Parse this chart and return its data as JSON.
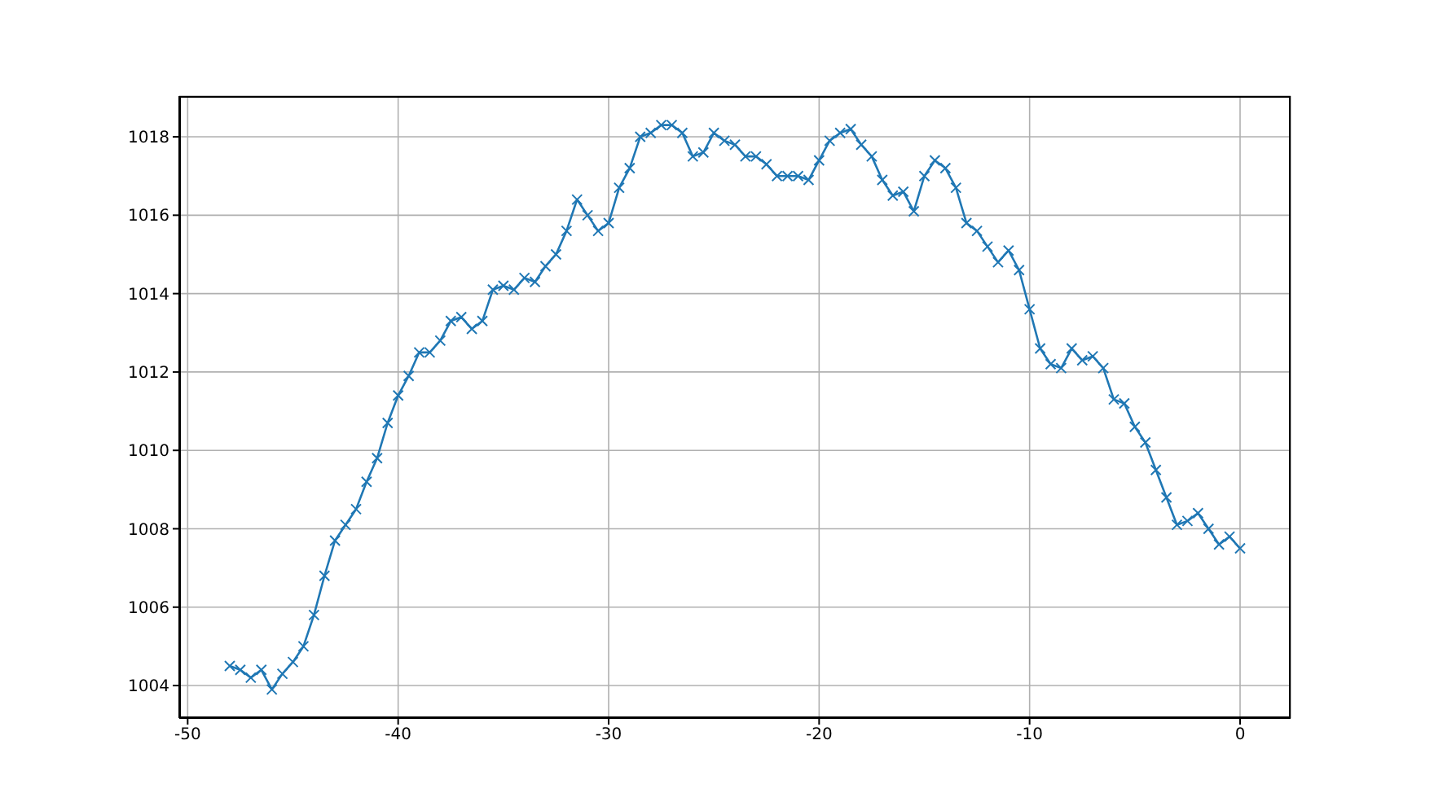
{
  "chart_data": {
    "type": "line",
    "x": [
      -48,
      -47.5,
      -47,
      -46.5,
      -46,
      -45.5,
      -45,
      -44.5,
      -44,
      -43.5,
      -43,
      -42.5,
      -42,
      -41.5,
      -41,
      -40.5,
      -40,
      -39.5,
      -39,
      -38.5,
      -38,
      -37.5,
      -37,
      -36.5,
      -36,
      -35.5,
      -35,
      -34.5,
      -34,
      -33.5,
      -33,
      -32.5,
      -32,
      -31.5,
      -31,
      -30.5,
      -30,
      -29.5,
      -29,
      -28.5,
      -28,
      -27.5,
      -27,
      -26.5,
      -26,
      -25.5,
      -25,
      -24.5,
      -24,
      -23.5,
      -23,
      -22.5,
      -22,
      -21.5,
      -21,
      -20.5,
      -20,
      -19.5,
      -19,
      -18.5,
      -18,
      -17.5,
      -17,
      -16.5,
      -16,
      -15.5,
      -15,
      -14.5,
      -14,
      -13.5,
      -13,
      -12.5,
      -12,
      -11.5,
      -11,
      -10.5,
      -10,
      -9.5,
      -9,
      -8.5,
      -8,
      -7.5,
      -7,
      -6.5,
      -6,
      -5.5,
      -5,
      -4.5,
      -4,
      -3.5,
      -3,
      -2.5,
      -2,
      -1.5,
      -1,
      -0.5,
      0
    ],
    "series": [
      {
        "color": "#1f77b4",
        "values": [
          1004.5,
          1004.4,
          1004.2,
          1004.4,
          1003.9,
          1004.3,
          1004.6,
          1005.0,
          1005.8,
          1006.8,
          1007.7,
          1008.1,
          1008.5,
          1009.2,
          1009.8,
          1010.7,
          1011.4,
          1011.9,
          1012.5,
          1012.5,
          1012.8,
          1013.3,
          1013.4,
          1013.1,
          1013.3,
          1014.1,
          1014.2,
          1014.1,
          1014.4,
          1014.3,
          1014.7,
          1015.0,
          1015.6,
          1016.4,
          1016.0,
          1015.6,
          1015.8,
          1016.7,
          1017.2,
          1018.0,
          1018.1,
          1018.3,
          1018.3,
          1018.1,
          1017.5,
          1017.6,
          1018.1,
          1017.9,
          1017.8,
          1017.5,
          1017.5,
          1017.3,
          1017.0,
          1017.0,
          1017.0,
          1016.9,
          1017.4,
          1017.9,
          1018.1,
          1018.2,
          1017.8,
          1017.5,
          1016.9,
          1016.5,
          1016.6,
          1016.1,
          1017.0,
          1017.4,
          1017.2,
          1016.7,
          1015.8,
          1015.6,
          1015.2,
          1014.8,
          1015.1,
          1014.6,
          1013.6,
          1012.6,
          1012.2,
          1012.1,
          1012.6,
          1012.3,
          1012.4,
          1012.1,
          1011.3,
          1011.2,
          1010.6,
          1010.2,
          1009.5,
          1008.8,
          1008.1,
          1008.2,
          1008.4,
          1008.0,
          1007.6,
          1007.8,
          1007.5
        ]
      }
    ],
    "xlim": [
      -50.4,
      2.4
    ],
    "xticks": [
      -50,
      -40,
      -30,
      -20,
      -10,
      0
    ],
    "ylim": [
      1003.17,
      1019.04
    ],
    "yticks": [
      1004,
      1006,
      1008,
      1010,
      1012,
      1014,
      1016,
      1018
    ],
    "grid": true,
    "marker": "cross",
    "line_style": "solid",
    "legend": false
  }
}
